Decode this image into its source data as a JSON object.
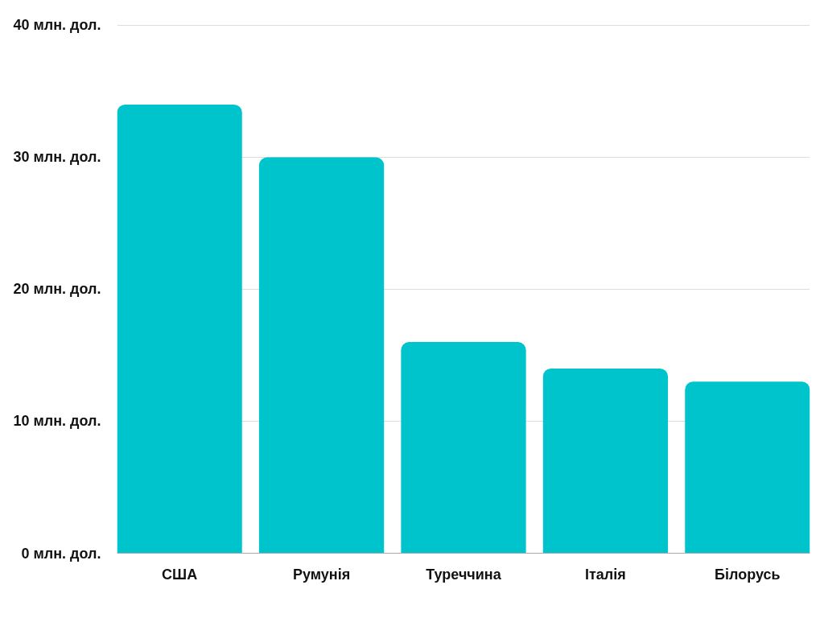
{
  "chart_data": {
    "type": "bar",
    "categories": [
      "США",
      "Румунія",
      "Туреччина",
      "Італія",
      "Білорусь"
    ],
    "values": [
      34,
      30,
      16,
      14,
      13
    ],
    "color": "#00c4cc",
    "ylim": [
      0,
      40
    ],
    "yticks": [
      {
        "value": 0,
        "label": "0 млн. дол."
      },
      {
        "value": 10,
        "label": "10 млн. дол."
      },
      {
        "value": 20,
        "label": "20 млн. дол."
      },
      {
        "value": 30,
        "label": "30 млн. дол."
      },
      {
        "value": 40,
        "label": "40 млн. дол."
      }
    ],
    "grid": "y"
  }
}
